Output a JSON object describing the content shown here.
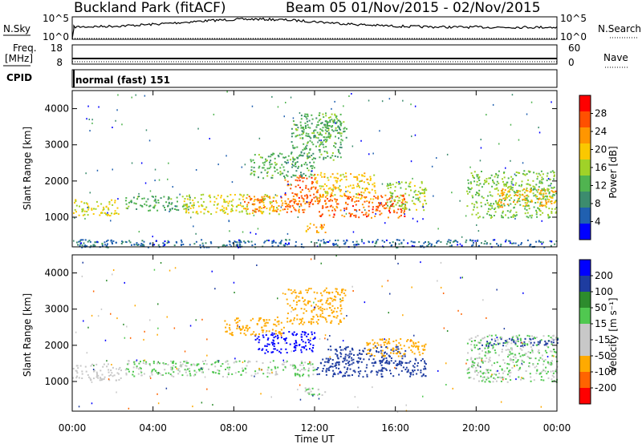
{
  "chart_data": {
    "type": "heatmap",
    "title_left": "Buckland Park (fitACF)",
    "title_right": "Beam 05  01/Nov/2015 - 02/Nov/2015",
    "xlabel": "Time UT",
    "x_ticks": [
      "00:00",
      "04:00",
      "08:00",
      "12:00",
      "16:00",
      "20:00",
      "00:00"
    ],
    "x_range_hours": [
      0,
      24
    ],
    "noise_panel": {
      "left_label": "N.Sky",
      "right_label": "N.Search",
      "left_ticks": [
        "10^5",
        "10^0"
      ],
      "right_ticks": [
        "10^5",
        "10^0"
      ]
    },
    "freq_panel": {
      "left_label_1": "Freq.",
      "left_label_2": "[MHz]",
      "right_label": "Nave",
      "left_ticks": [
        "18",
        "8"
      ],
      "right_ticks": [
        "60",
        "0"
      ],
      "freq_mhz": 8.3,
      "nave": 2
    },
    "cpid_panel": {
      "label": "CPID",
      "program": "normal (fast) 151"
    },
    "power_panel": {
      "ylabel": "Slant Range [km]",
      "y_ticks": [
        "4000",
        "3000",
        "2000",
        "1000"
      ],
      "y_tick_values": [
        4000,
        3000,
        2000,
        1000
      ],
      "ylim": [
        180,
        4500
      ],
      "colorbar_label": "Power [dB]",
      "colorbar_ticks": [
        "28",
        "24",
        "20",
        "16",
        "12",
        "8",
        "4"
      ],
      "colorbar_range": [
        0,
        32
      ],
      "colors": [
        "#0000ff",
        "#2060b0",
        "#3c8c6e",
        "#50b450",
        "#a0d228",
        "#fac800",
        "#ff9600",
        "#ff5000",
        "#ff0000"
      ],
      "regions": [
        {
          "t0": 0.0,
          "t1": 2.4,
          "r0": 1050,
          "r1": 1500,
          "v": 18
        },
        {
          "t0": 0.2,
          "t1": 1.6,
          "r0": 200,
          "r1": 420,
          "v": 8
        },
        {
          "t0": 2.6,
          "t1": 6.0,
          "r0": 1200,
          "r1": 1600,
          "v": 12
        },
        {
          "t0": 5.5,
          "t1": 10.2,
          "r0": 1100,
          "r1": 1650,
          "v": 18
        },
        {
          "t0": 8.5,
          "t1": 11.5,
          "r0": 1150,
          "r1": 1600,
          "v": 24
        },
        {
          "t0": 10.5,
          "t1": 12.2,
          "r0": 1300,
          "r1": 2200,
          "v": 26
        },
        {
          "t0": 12.0,
          "t1": 15.0,
          "r0": 1500,
          "r1": 2250,
          "v": 20
        },
        {
          "t0": 12.2,
          "t1": 16.5,
          "r0": 1000,
          "r1": 1650,
          "v": 26
        },
        {
          "t0": 15.5,
          "t1": 17.5,
          "r0": 1200,
          "r1": 2000,
          "v": 16
        },
        {
          "t0": 8.8,
          "t1": 12.0,
          "r0": 2100,
          "r1": 2800,
          "v": 12
        },
        {
          "t0": 10.8,
          "t1": 13.3,
          "r0": 2600,
          "r1": 3700,
          "v": 12
        },
        {
          "t0": 11.2,
          "t1": 13.6,
          "r0": 3200,
          "r1": 3900,
          "v": 12
        },
        {
          "t0": 11.5,
          "t1": 12.6,
          "r0": 600,
          "r1": 850,
          "v": 22
        },
        {
          "t0": 19.5,
          "t1": 24.0,
          "r0": 1000,
          "r1": 2300,
          "v": 14
        },
        {
          "t0": 21.0,
          "t1": 24.0,
          "r0": 1300,
          "r1": 1800,
          "v": 22
        },
        {
          "t0": 0.0,
          "t1": 24.0,
          "r0": 180,
          "r1": 400,
          "v": 6
        }
      ]
    },
    "velocity_panel": {
      "ylabel": "Slant Range [km]",
      "y_ticks": [
        "4000",
        "3000",
        "2000",
        "1000"
      ],
      "y_tick_values": [
        4000,
        3000,
        2000,
        1000
      ],
      "ylim": [
        180,
        4500
      ],
      "colorbar_label": "Velocity [m s⁻¹]",
      "colorbar_ticks": [
        "200",
        "100",
        "50",
        "15",
        "-15",
        "-50",
        "-100",
        "-200"
      ],
      "colors": [
        "#ff0000",
        "#ff6400",
        "#ffaa00",
        "#c8c8c8",
        "#c8c8c8",
        "#50c850",
        "#2d8c2d",
        "#1e3ca0",
        "#0000ff"
      ],
      "regions": [
        {
          "t0": 0.0,
          "t1": 2.4,
          "r0": 1050,
          "r1": 1500,
          "v": -10
        },
        {
          "t0": 2.6,
          "t1": 12.0,
          "r0": 1150,
          "r1": 1600,
          "v": 0
        },
        {
          "t0": 12.0,
          "t1": 17.5,
          "r0": 1150,
          "r1": 1650,
          "v": 70
        },
        {
          "t0": 12.5,
          "t1": 16.5,
          "r0": 1500,
          "r1": 2000,
          "v": 70
        },
        {
          "t0": 9.0,
          "t1": 12.0,
          "r0": 1800,
          "r1": 2400,
          "v": 220
        },
        {
          "t0": 7.5,
          "t1": 10.5,
          "r0": 2300,
          "r1": 2800,
          "v": -80
        },
        {
          "t0": 14.5,
          "t1": 17.5,
          "r0": 1700,
          "r1": 2200,
          "v": -80
        },
        {
          "t0": 10.5,
          "t1": 13.5,
          "r0": 2600,
          "r1": 3600,
          "v": -60
        },
        {
          "t0": 11.5,
          "t1": 12.6,
          "r0": 600,
          "r1": 850,
          "v": 0
        },
        {
          "t0": 19.5,
          "t1": 24.0,
          "r0": 1000,
          "r1": 2300,
          "v": 0
        },
        {
          "t0": 20.0,
          "t1": 24.0,
          "r0": 2000,
          "r1": 2200,
          "v": 60
        }
      ]
    }
  }
}
